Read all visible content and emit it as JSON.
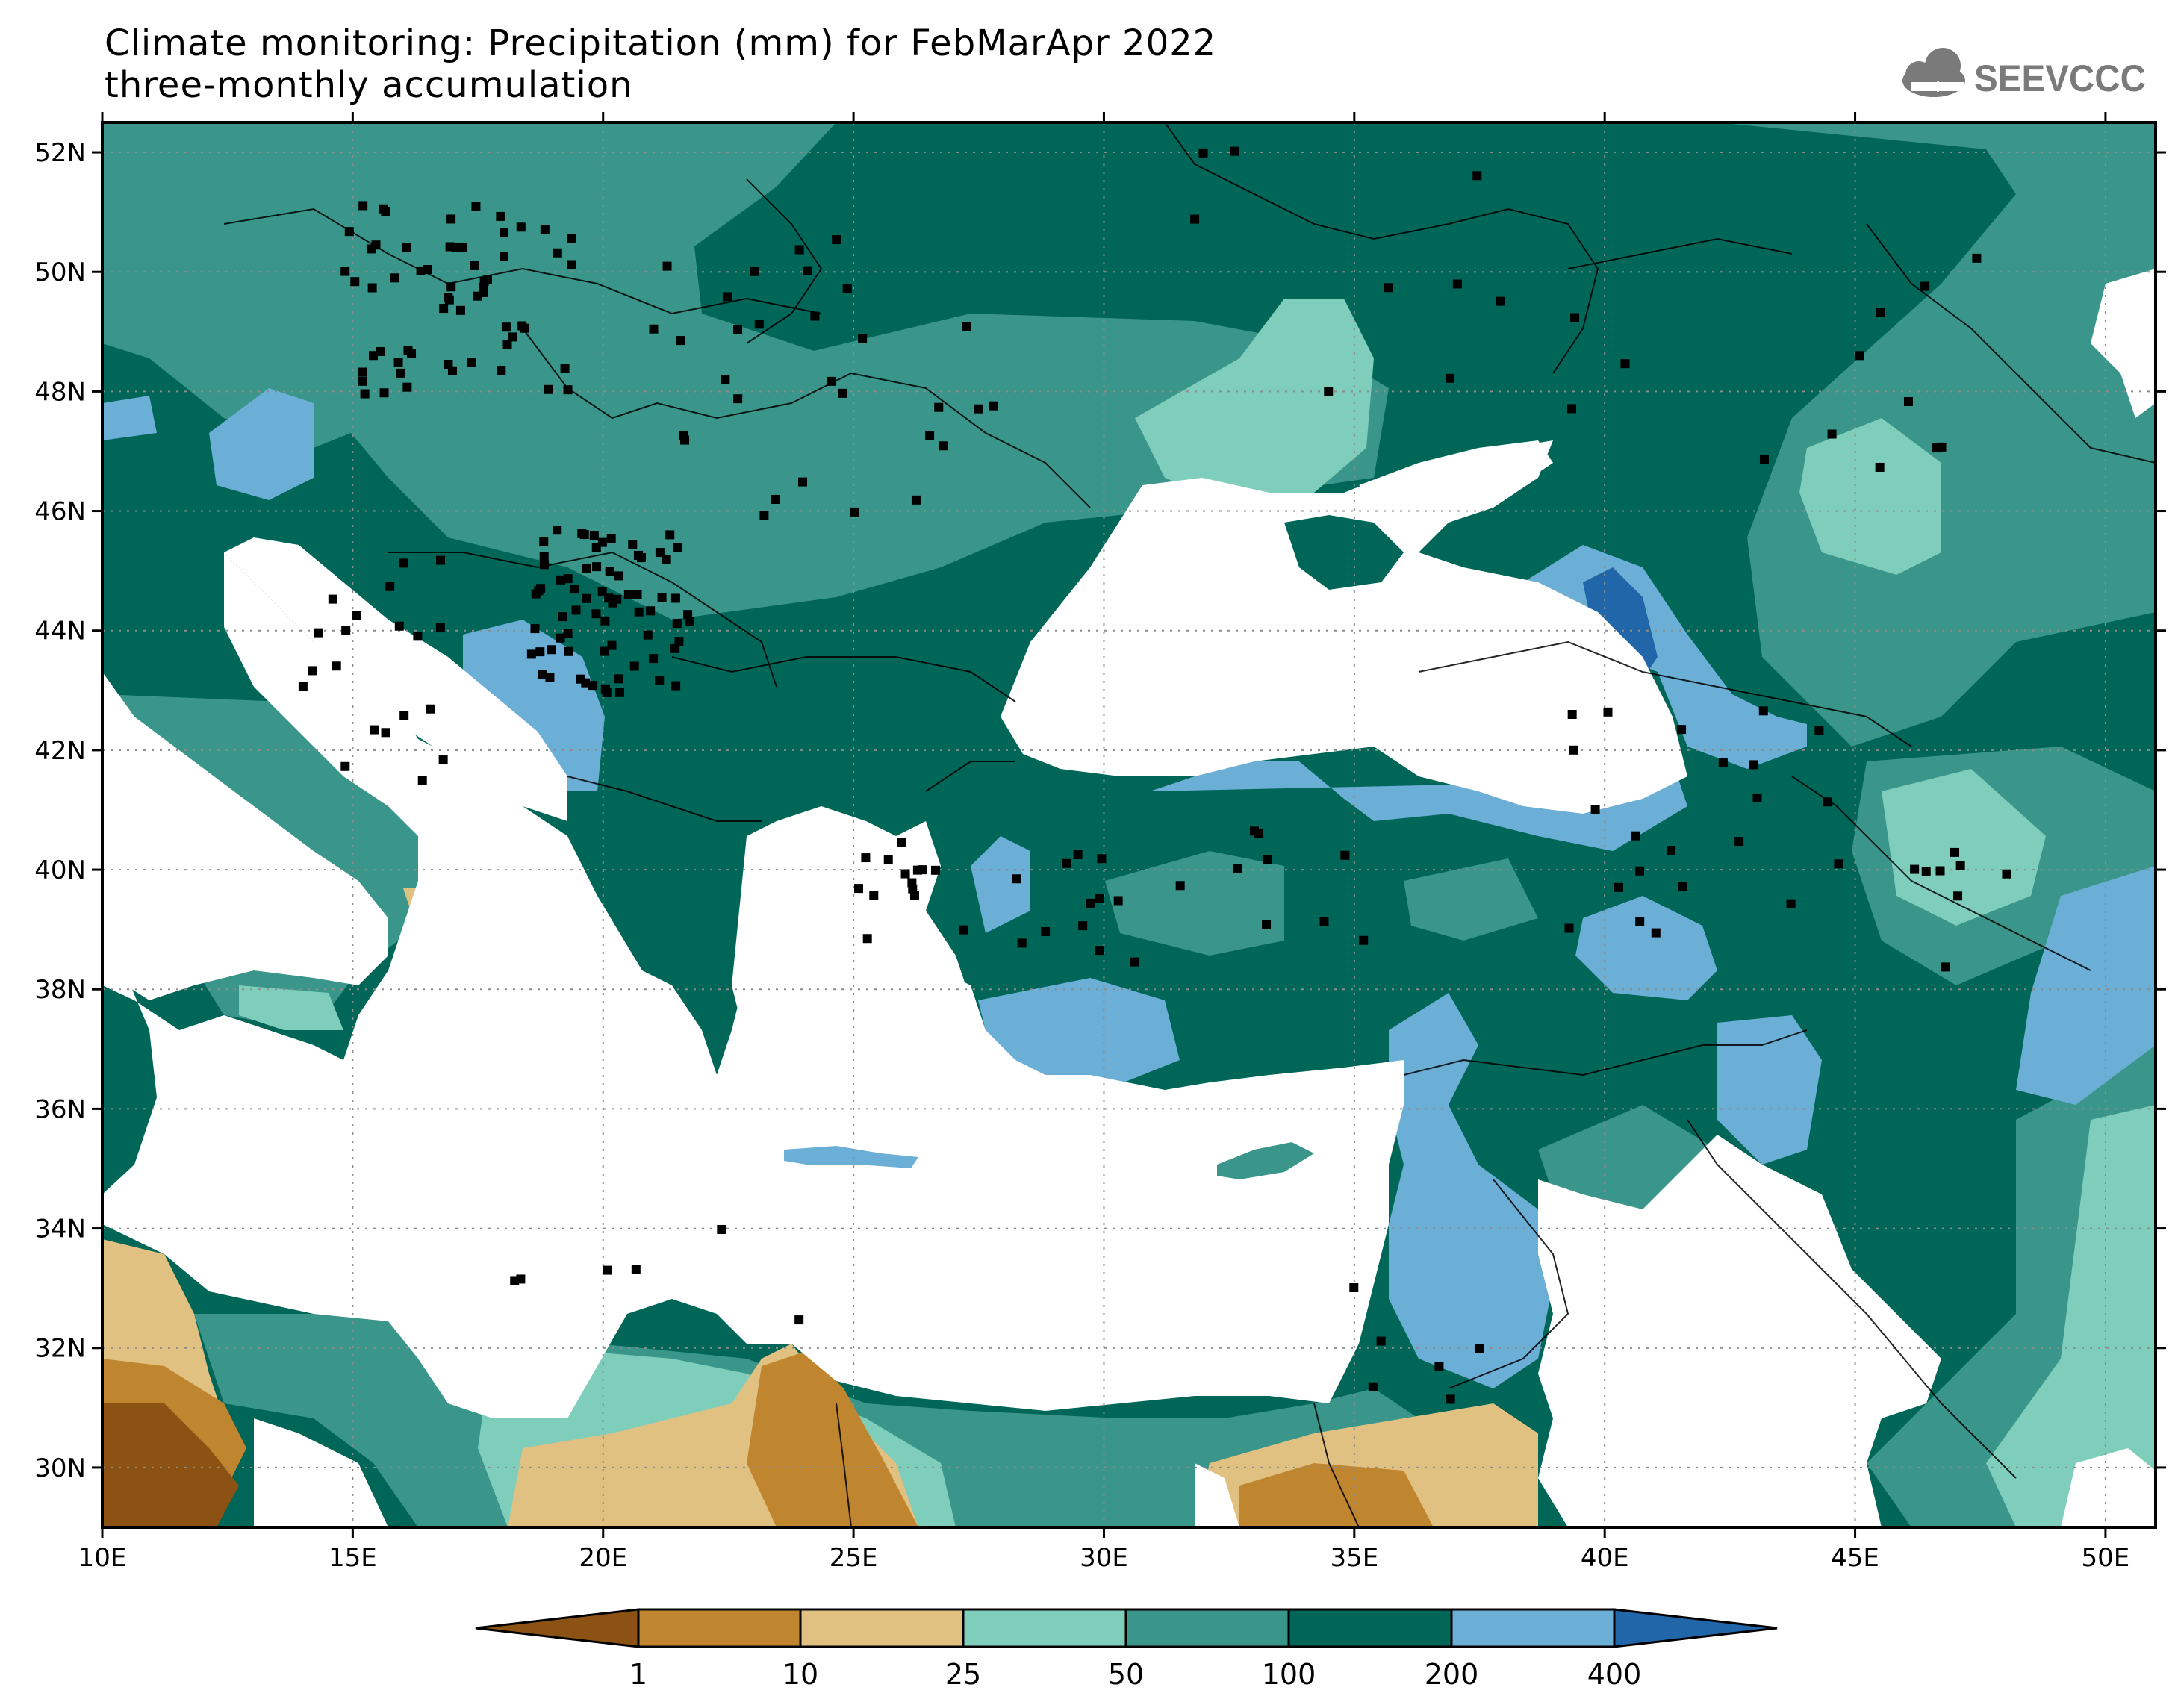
{
  "title": {
    "line1": "Climate monitoring: Precipitation (mm) for FebMarApr 2022",
    "line2": "three-monthly accumulation"
  },
  "logo": {
    "text": "SEEVCCC",
    "icon": "cloud-icon"
  },
  "map": {
    "lat_range": [
      29,
      52.5
    ],
    "lon_range": [
      10,
      51
    ],
    "lat_ticks": [
      "52N",
      "50N",
      "48N",
      "46N",
      "44N",
      "42N",
      "40N",
      "38N",
      "36N",
      "34N",
      "32N",
      "30N"
    ],
    "lat_tick_values": [
      52,
      50,
      48,
      46,
      44,
      42,
      40,
      38,
      36,
      34,
      32,
      30
    ],
    "lon_ticks": [
      "10E",
      "15E",
      "20E",
      "25E",
      "30E",
      "35E",
      "40E",
      "45E",
      "50E"
    ],
    "lon_tick_values": [
      10,
      15,
      20,
      25,
      30,
      35,
      40,
      45,
      50
    ],
    "grid": "dotted"
  },
  "colorbar": {
    "labels": [
      "1",
      "10",
      "25",
      "50",
      "100",
      "200",
      "400"
    ],
    "colors": [
      "#8b5213",
      "#c0862f",
      "#e0c181",
      "#7fcdbb",
      "#3a968a",
      "#006658",
      "#6baed6",
      "#2066a8"
    ]
  }
}
